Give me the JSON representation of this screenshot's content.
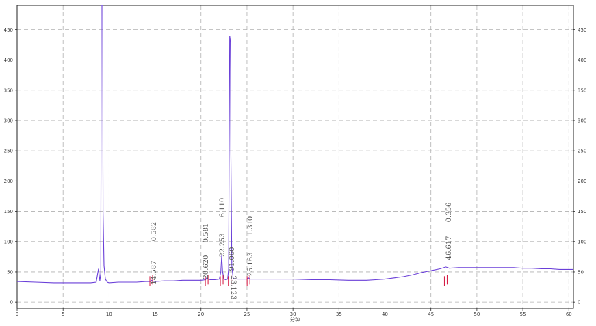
{
  "chart_data": {
    "type": "line",
    "xlabel": "分钟",
    "ylabel": "",
    "xlim": [
      0,
      60.5
    ],
    "ylim": [
      -10,
      490
    ],
    "grid": true,
    "x_ticks": [
      "0",
      "5",
      "10",
      "15",
      "20",
      "25",
      "30",
      "35",
      "40",
      "45",
      "50",
      "55",
      "60"
    ],
    "y_ticks": [
      "0",
      "50",
      "100",
      "150",
      "200",
      "250",
      "300",
      "350",
      "400",
      "450"
    ],
    "colors": {
      "signal": "#6a3fd8",
      "peak_marker": "#d4103a",
      "grid": "#b0b0b0",
      "axis": "#222222",
      "label": "#555555"
    },
    "series": [
      {
        "x": [
          0,
          2,
          4,
          6,
          8,
          8.6,
          8.85,
          9.0,
          9.1,
          9.15,
          9.2,
          9.25,
          9.3,
          9.35,
          9.45,
          9.6,
          9.8,
          10,
          11,
          12,
          13,
          14,
          14.5,
          14.59,
          14.7,
          15,
          16,
          17,
          18,
          19,
          20,
          20.5,
          20.62,
          20.8,
          21,
          21.5,
          22,
          22.15,
          22.25,
          22.35,
          22.5,
          22.7,
          22.9,
          23.0,
          23.05,
          23.12,
          23.2,
          23.25,
          23.35,
          23.5,
          24,
          25,
          25.16,
          25.3,
          26,
          28,
          30,
          32,
          34,
          36,
          37,
          38,
          39,
          40,
          41,
          42,
          43,
          44,
          45,
          46,
          46.62,
          47,
          48,
          50,
          52,
          54,
          55,
          56,
          57,
          58,
          59,
          60,
          60.5
        ],
        "y": [
          34,
          33,
          32,
          32,
          32,
          33,
          55,
          35,
          48,
          490,
          490,
          490,
          490,
          150,
          60,
          38,
          33,
          32,
          33,
          33,
          33,
          34,
          34,
          36,
          35,
          34,
          35,
          35,
          36,
          36,
          36,
          37,
          40,
          38,
          37,
          37,
          38,
          50,
          77,
          50,
          38,
          37,
          38,
          55,
          200,
          440,
          430,
          250,
          60,
          39,
          38,
          38,
          40,
          38,
          38,
          38,
          38,
          37,
          37,
          36,
          36,
          36,
          37,
          38,
          40,
          42,
          45,
          49,
          52,
          55,
          58,
          56,
          57,
          57,
          57,
          57,
          56,
          56,
          55,
          55,
          54,
          54,
          54
        ]
      }
    ],
    "peaks": [
      {
        "rt": 14.587,
        "rt_label": "14.587",
        "area_label": "0.582",
        "h": 40
      },
      {
        "rt": 20.62,
        "rt_label": "20.620",
        "area_label": "0.581",
        "h": 42
      },
      {
        "rt": 22.253,
        "rt_label": "22.253",
        "area_label": "6.110",
        "h": 77
      },
      {
        "rt": 23.123,
        "rt_label": "23.123",
        "area_label": "91.060",
        "h": 440
      },
      {
        "rt": 25.163,
        "rt_label": "25.163",
        "area_label": "1.310",
        "h": 42
      },
      {
        "rt": 46.617,
        "rt_label": "46.617",
        "area_label": "0.356",
        "h": 58
      }
    ]
  }
}
